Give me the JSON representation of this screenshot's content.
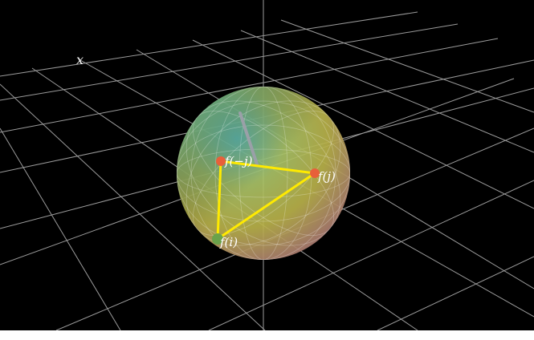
{
  "axis_label": "x",
  "points": [
    {
      "label": "f(−j)"
    },
    {
      "label": "f(j)"
    },
    {
      "label": "f(i)"
    }
  ]
}
